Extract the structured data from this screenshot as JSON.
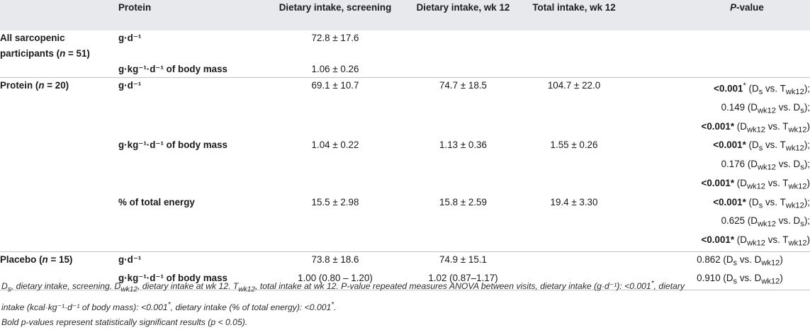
{
  "table": {
    "headers": {
      "group": "",
      "protein": "Protein",
      "screening": "Dietary intake, screening",
      "wk12": "Dietary intake, wk 12",
      "total": "Total intake, wk 12",
      "p_pre": "",
      "p_italic": "P",
      "p_post": "-value"
    },
    "groups": [
      {
        "label": "All sarcopenic participants (",
        "n_label": "n",
        "n_value": " = 51)",
        "rows": [
          {
            "measure": "g·d⁻¹",
            "screening": "72.8 ± 17.6",
            "wk12": "",
            "total": ""
          },
          {
            "measure": "g·kg⁻¹·d⁻¹ of body mass",
            "screening": "1.06 ± 0.26",
            "wk12": "",
            "total": ""
          }
        ]
      },
      {
        "label": "Protein (",
        "n_label": "n",
        "n_value": " = 20)",
        "rows": [
          {
            "measure": "g·d⁻¹",
            "screening": "69.1 ± 10.7",
            "wk12": "74.7 ± 18.5",
            "total": "104.7 ± 22.0",
            "p": [
              {
                "bold": "<0.001",
                "star": "*",
                "rest": " (D",
                "sub1": "s",
                "mid": " vs. T",
                "sub2": "wk12",
                "end": ");"
              },
              {
                "bold": "",
                "star": "",
                "rest": "0.149 (D",
                "sub1": "wk12",
                "mid": " vs. D",
                "sub2": "s",
                "end": ");"
              },
              {
                "bold": "<0.001*",
                "star": "",
                "rest": " (D",
                "sub1": "wk12",
                "mid": " vs. T",
                "sub2": "wk12",
                "end": ")"
              }
            ]
          },
          {
            "measure": "g·kg⁻¹·d⁻¹ of body mass",
            "screening": "1.04 ± 0.22",
            "wk12": "1.13 ± 0.36",
            "total": "1.55 ± 0.26",
            "p": [
              {
                "bold": "<0.001*",
                "star": "",
                "rest": " (D",
                "sub1": "s",
                "mid": " vs. T",
                "sub2": "wk12",
                "end": ");"
              },
              {
                "bold": "",
                "star": "",
                "rest": "0.176 (D",
                "sub1": "wk12",
                "mid": " vs. D",
                "sub2": "s",
                "end": ");"
              },
              {
                "bold": "<0.001*",
                "star": "",
                "rest": " (D",
                "sub1": "wk12",
                "mid": " vs. T",
                "sub2": "wk12",
                "end": ")"
              }
            ]
          },
          {
            "measure": "% of total energy",
            "screening": "15.5 ± 2.98",
            "wk12": "15.8 ± 2.59",
            "total": "19.4 ± 3.30",
            "p": [
              {
                "bold": "<0.001*",
                "star": "",
                "rest": " (D",
                "sub1": "s",
                "mid": " vs. T",
                "sub2": "wk12",
                "end": ");"
              },
              {
                "bold": "",
                "star": "",
                "rest": "0.625 (D",
                "sub1": "wk12",
                "mid": " vs. D",
                "sub2": "s",
                "end": ");"
              },
              {
                "bold": "<0.001*",
                "star": "",
                "rest": " (D",
                "sub1": "wk12",
                "mid": " vs. T",
                "sub2": "wk12",
                "end": ")"
              }
            ]
          }
        ]
      },
      {
        "label": "Placebo (",
        "n_label": "n",
        "n_value": " = 15)",
        "rows": [
          {
            "measure": "g·d⁻¹",
            "screening": "73.8 ± 18.6",
            "wk12": "74.9 ± 15.1",
            "total": "",
            "p": [
              {
                "bold": "",
                "star": "",
                "rest": "0.862 (D",
                "sub1": "s",
                "mid": " vs. D",
                "sub2": "wk12",
                "end": ")"
              }
            ]
          },
          {
            "measure": "g·kg⁻¹·d⁻¹ of body mass",
            "screening": "1.00 (0.80 – 1.20)",
            "wk12": "1.02 (0.87–1.17)",
            "total": "",
            "p": [
              {
                "bold": "",
                "star": "",
                "rest": "0.910 (D",
                "sub1": "s",
                "mid": " vs. D",
                "sub2": "wk12",
                "end": ")"
              }
            ]
          }
        ]
      }
    ]
  },
  "notes": {
    "line1_a": "D",
    "line1_a_sub": "s",
    "line1_b": ", dietary intake, screening. D",
    "line1_b_sub": "wk12",
    "line1_c": ", dietary intake at wk 12. T",
    "line1_c_sub": "wk12",
    "line1_d": ", total intake at wk 12. P-value repeated measures ANOVA between visits, dietary intake (g·d⁻¹): <0.001",
    "star": "*",
    "line1_e": ", dietary",
    "line2_a": "intake (kcal·kg⁻¹·d⁻¹ of body mass): <0.001",
    "line2_b": ", dietary intake (% of total energy): <0.001",
    "line2_c": ".",
    "line3": "Bold p-values represent statistically significant results (p < 0.05)."
  }
}
